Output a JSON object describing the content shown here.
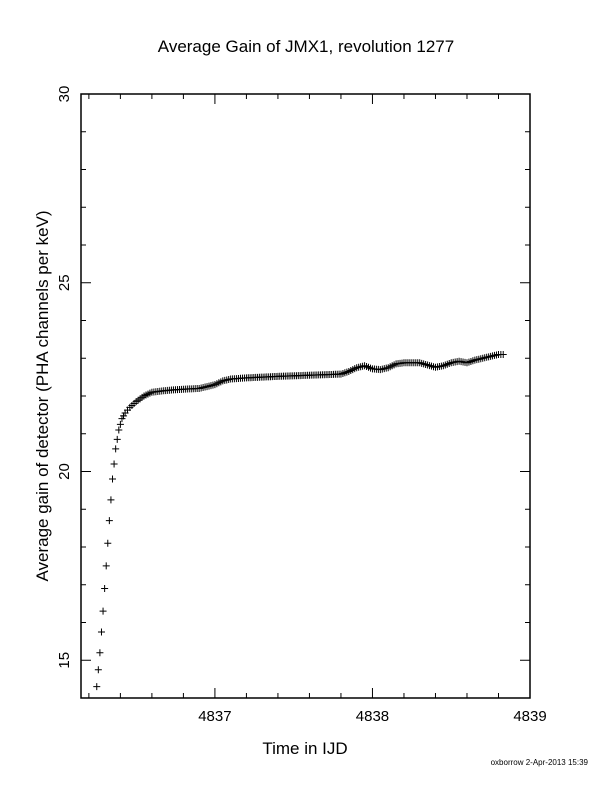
{
  "chart_data": {
    "type": "scatter",
    "marker": "+",
    "title": "Average Gain of JMX1, revolution 1277",
    "xlabel": "Time in IJD",
    "ylabel": "Average gain of detector (PHA channels per keV)",
    "xlim": [
      4836.15,
      4839.0
    ],
    "ylim": [
      14.0,
      30.0
    ],
    "xticks": [
      4837,
      4838,
      4839
    ],
    "yticks": [
      15,
      20,
      25,
      30
    ],
    "grid": false,
    "series": [
      {
        "color": "#000000",
        "x": [
          4836.25,
          4836.27,
          4836.29,
          4836.31,
          4836.33,
          4836.35,
          4836.37,
          4836.39,
          4836.41,
          4836.43,
          4836.46,
          4836.5,
          4836.55,
          4836.6,
          4836.7,
          4836.8,
          4836.9,
          4836.95,
          4837.0,
          4837.05,
          4837.1,
          4837.2,
          4837.4,
          4837.6,
          4837.8,
          4837.85,
          4837.9,
          4837.95,
          4838.0,
          4838.05,
          4838.1,
          4838.15,
          4838.2,
          4838.3,
          4838.35,
          4838.4,
          4838.45,
          4838.5,
          4838.55,
          4838.6,
          4838.65,
          4838.7,
          4838.75,
          4838.8,
          4838.83
        ],
        "y": [
          14.3,
          15.2,
          16.3,
          17.5,
          18.7,
          19.8,
          20.6,
          21.1,
          21.4,
          21.55,
          21.7,
          21.85,
          22.0,
          22.1,
          22.15,
          22.18,
          22.2,
          22.25,
          22.3,
          22.4,
          22.45,
          22.48,
          22.52,
          22.55,
          22.58,
          22.65,
          22.75,
          22.8,
          22.72,
          22.7,
          22.75,
          22.85,
          22.88,
          22.88,
          22.82,
          22.76,
          22.8,
          22.88,
          22.92,
          22.88,
          22.95,
          23.0,
          23.05,
          23.1,
          23.1
        ]
      }
    ]
  },
  "footer": {
    "text": "oxborrow  2-Apr-2013 15:39"
  }
}
